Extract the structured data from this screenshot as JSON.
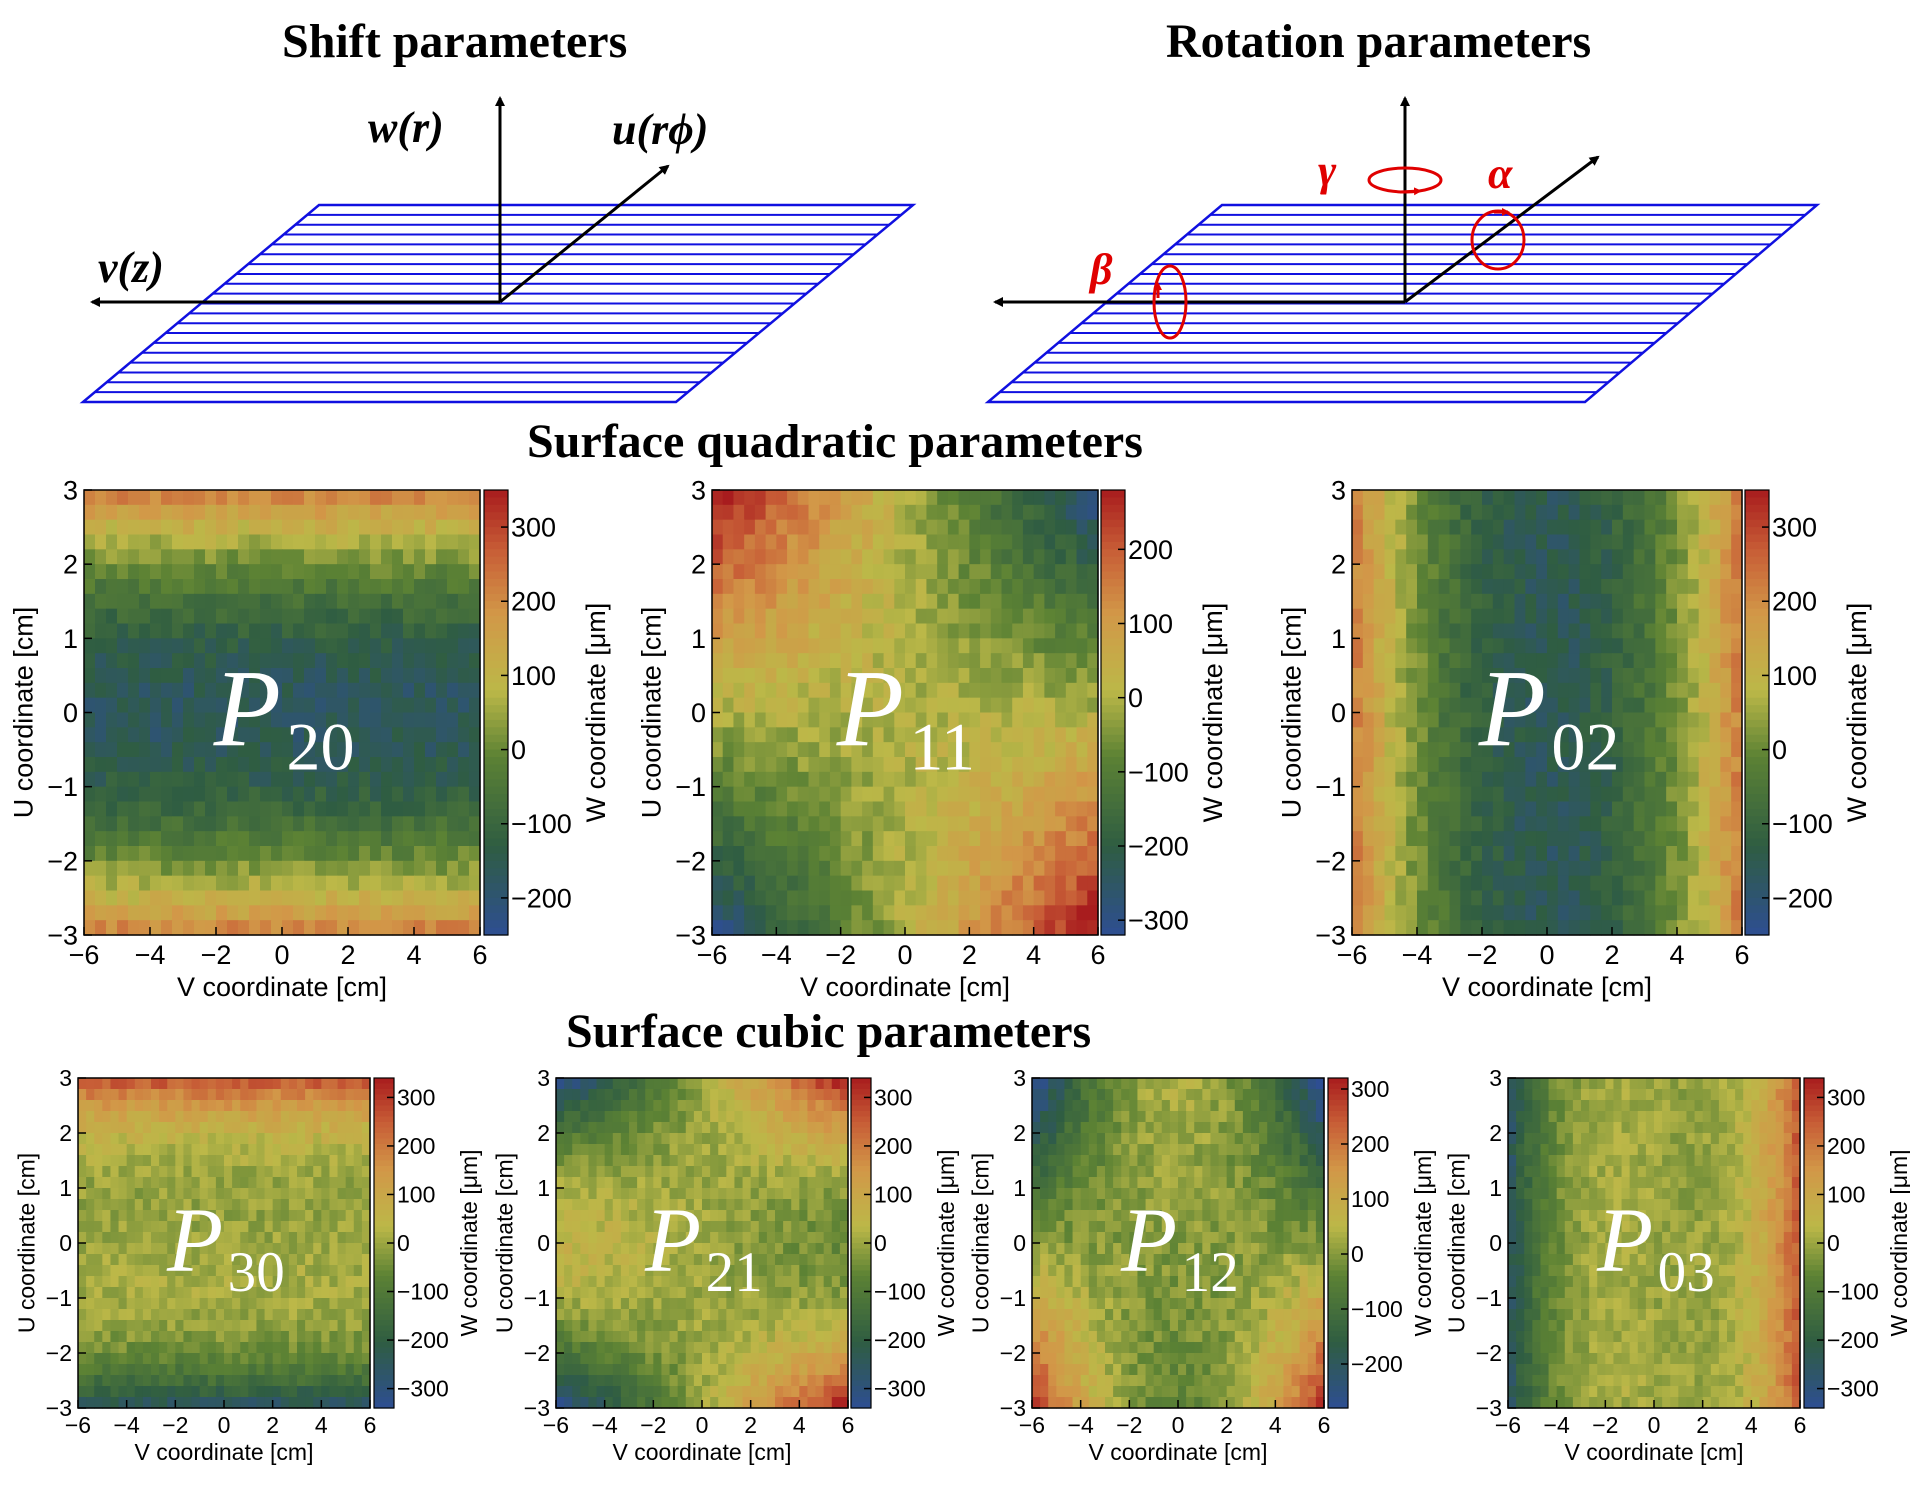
{
  "titles": {
    "shift": "Shift parameters",
    "rotation": "Rotation parameters",
    "quadratic": "Surface quadratic parameters",
    "cubic": "Surface cubic parameters"
  },
  "shift_diagram": {
    "labels": {
      "w": "w(r)",
      "u": "u(rϕ)",
      "v": "v(z)"
    }
  },
  "rotation_diagram": {
    "labels": {
      "gamma": "γ",
      "alpha": "α",
      "beta": "β"
    },
    "rotation_color": "#e00000"
  },
  "colors": {
    "plane_lines": "#1010e0"
  },
  "axes": {
    "xlabel": "V coordinate [cm]",
    "ylabel": "U coordinate [cm]",
    "zlabel": "W coordinate [μm]",
    "x_ticks": [
      "−6",
      "−4",
      "−2",
      "0",
      "2",
      "4",
      "6"
    ],
    "y_ticks": [
      "−3",
      "−2",
      "−1",
      "0",
      "1",
      "2",
      "3"
    ]
  },
  "chart_data": [
    {
      "type": "heatmap",
      "name": "P",
      "sub": "20",
      "pattern": "p20",
      "xlim": [
        -6,
        6
      ],
      "ylim": [
        -3,
        3
      ],
      "zlim": [
        -250,
        350
      ],
      "colorbar_ticks": [
        "300",
        "200",
        "100",
        "0",
        "−100",
        "−200"
      ],
      "colorbar_values": [
        300,
        200,
        100,
        0,
        -100,
        -200
      ]
    },
    {
      "type": "heatmap",
      "name": "P",
      "sub": "11",
      "pattern": "p11",
      "xlim": [
        -6,
        6
      ],
      "ylim": [
        -3,
        3
      ],
      "zlim": [
        -320,
        280
      ],
      "colorbar_ticks": [
        "200",
        "100",
        "0",
        "−100",
        "−200",
        "−300"
      ],
      "colorbar_values": [
        200,
        100,
        0,
        -100,
        -200,
        -300
      ]
    },
    {
      "type": "heatmap",
      "name": "P",
      "sub": "02",
      "pattern": "p02",
      "xlim": [
        -6,
        6
      ],
      "ylim": [
        -3,
        3
      ],
      "zlim": [
        -250,
        350
      ],
      "colorbar_ticks": [
        "300",
        "200",
        "100",
        "0",
        "−100",
        "−200"
      ],
      "colorbar_values": [
        300,
        200,
        100,
        0,
        -100,
        -200
      ]
    },
    {
      "type": "heatmap",
      "name": "P",
      "sub": "30",
      "pattern": "p30",
      "xlim": [
        -6,
        6
      ],
      "ylim": [
        -3,
        3
      ],
      "zlim": [
        -340,
        340
      ],
      "colorbar_ticks": [
        "300",
        "200",
        "100",
        "0",
        "−100",
        "−200",
        "−300"
      ],
      "colorbar_values": [
        300,
        200,
        100,
        0,
        -100,
        -200,
        -300
      ]
    },
    {
      "type": "heatmap",
      "name": "P",
      "sub": "21",
      "pattern": "p21",
      "xlim": [
        -6,
        6
      ],
      "ylim": [
        -3,
        3
      ],
      "zlim": [
        -340,
        340
      ],
      "colorbar_ticks": [
        "300",
        "200",
        "100",
        "0",
        "−100",
        "−200",
        "−300"
      ],
      "colorbar_values": [
        300,
        200,
        100,
        0,
        -100,
        -200,
        -300
      ]
    },
    {
      "type": "heatmap",
      "name": "P",
      "sub": "12",
      "pattern": "p12",
      "xlim": [
        -6,
        6
      ],
      "ylim": [
        -3,
        3
      ],
      "zlim": [
        -280,
        320
      ],
      "colorbar_ticks": [
        "300",
        "200",
        "100",
        "0",
        "−100",
        "−200"
      ],
      "colorbar_values": [
        300,
        200,
        100,
        0,
        -100,
        -200
      ]
    },
    {
      "type": "heatmap",
      "name": "P",
      "sub": "03",
      "pattern": "p03",
      "xlim": [
        -6,
        6
      ],
      "ylim": [
        -3,
        3
      ],
      "zlim": [
        -340,
        340
      ],
      "colorbar_ticks": [
        "300",
        "200",
        "100",
        "0",
        "−100",
        "−200",
        "−300"
      ],
      "colorbar_values": [
        300,
        200,
        100,
        0,
        -100,
        -200,
        -300
      ]
    }
  ]
}
